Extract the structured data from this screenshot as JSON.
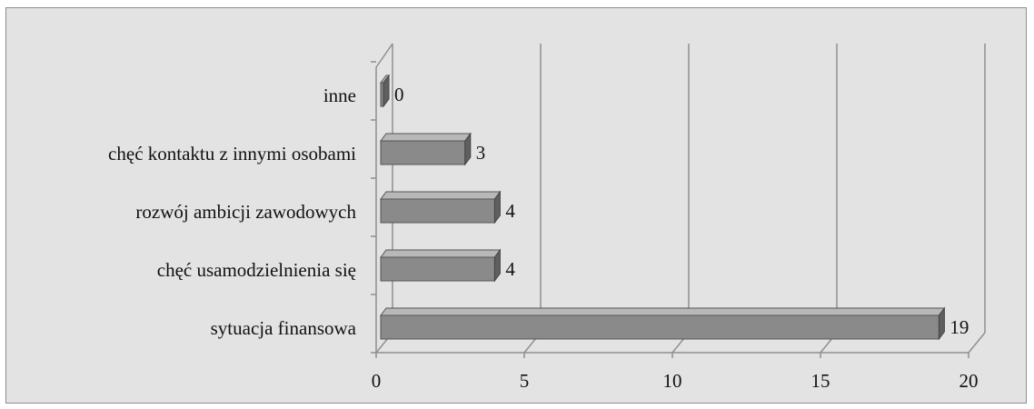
{
  "chart_data": {
    "type": "bar",
    "orientation": "horizontal",
    "style": "3d",
    "title": "",
    "xlabel": "",
    "ylabel": "",
    "categories": [
      "sytuacja finansowa",
      "chęć usamodzielnienia się",
      "rozwój ambicji zawodowych",
      "chęć kontaktu z innymi osobami",
      "inne"
    ],
    "values": [
      19,
      4,
      4,
      3,
      0
    ],
    "value_labels": [
      "19",
      "4",
      "4",
      "3",
      "0"
    ],
    "xlim": [
      0,
      20
    ],
    "x_ticks": [
      0,
      5,
      10,
      15,
      20
    ],
    "x_tick_labels": [
      "0",
      "5",
      "10",
      "15",
      "20"
    ],
    "grid": true,
    "legend": "none",
    "colors": {
      "plot_background": "#e3e3e3",
      "bar_front": "#8a8a8a",
      "bar_top": "#b8b8b8",
      "bar_side": "#5f5f5f",
      "grid": "#8f8f8f"
    }
  }
}
